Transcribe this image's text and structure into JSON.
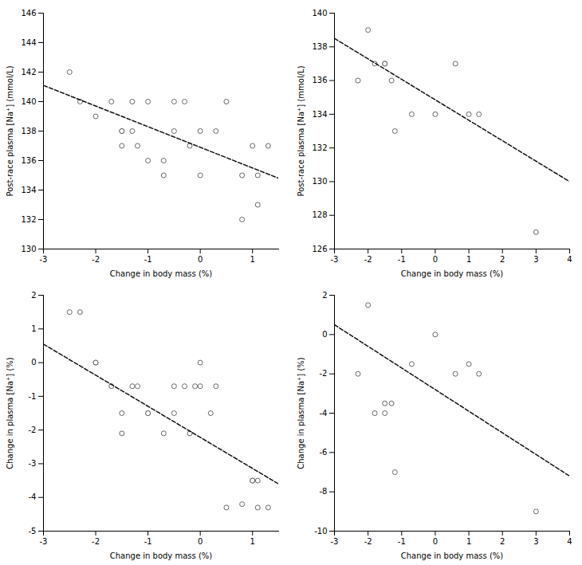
{
  "chart_data": [
    {
      "type": "scatter",
      "xlabel": "Change in body mass (%)",
      "ylabel": "Post-race plasma [Na⁺] (mmol/L)",
      "xlim": [
        -3,
        1.5
      ],
      "ylim": [
        130,
        146
      ],
      "xticks": [
        -3,
        -2,
        -1,
        0,
        1
      ],
      "yticks": [
        130,
        132,
        134,
        136,
        138,
        140,
        142,
        144,
        146
      ],
      "grid": false,
      "series": [
        {
          "type": "scatter",
          "marker": "open circle",
          "color": "#444444",
          "x": [
            -2.5,
            -2.3,
            -2.0,
            -1.7,
            -1.5,
            -1.5,
            -1.5,
            -1.3,
            -1.3,
            -1.2,
            -1.0,
            -1.0,
            -0.7,
            -0.7,
            -0.5,
            -0.5,
            -0.3,
            -0.2,
            0.0,
            0.0,
            0.3,
            0.5,
            0.8,
            0.8,
            1.0,
            1.1,
            1.1,
            1.3
          ],
          "values": [
            142,
            140,
            139,
            140,
            138,
            138,
            137,
            138,
            140,
            137,
            136,
            140,
            136,
            135,
            140,
            138,
            140,
            137,
            138,
            135,
            138,
            140,
            135,
            132,
            137,
            135,
            133,
            137
          ]
        },
        {
          "type": "line",
          "line_style": "dashed",
          "color": "#111111",
          "x": [
            -3,
            1.5
          ],
          "values": [
            141.1,
            134.8
          ]
        }
      ]
    },
    {
      "type": "scatter",
      "xlabel": "Change in body mass (%)",
      "ylabel": "Post-race plasma [Na⁺] (mmol/L)",
      "xlim": [
        -3,
        4
      ],
      "ylim": [
        126,
        140
      ],
      "xticks": [
        -3,
        -2,
        -1,
        0,
        1,
        2,
        3,
        4
      ],
      "yticks": [
        126,
        128,
        130,
        132,
        134,
        136,
        138,
        140
      ],
      "grid": false,
      "series": [
        {
          "type": "scatter",
          "marker": "open circle",
          "color": "#444444",
          "x": [
            -2.3,
            -2.0,
            -1.8,
            -1.5,
            -1.5,
            -1.3,
            -1.2,
            -0.7,
            0.0,
            0.6,
            1.0,
            1.3,
            3.0
          ],
          "values": [
            136,
            139,
            137,
            137,
            137,
            136,
            133,
            134,
            134,
            137,
            134,
            134,
            127
          ]
        },
        {
          "type": "line",
          "line_style": "dashed",
          "color": "#111111",
          "x": [
            -3,
            4
          ],
          "values": [
            138.5,
            130.0
          ]
        }
      ]
    },
    {
      "type": "scatter",
      "xlabel": "Change in body mass (%)",
      "ylabel": "Change in plasma [Na⁺] (%)",
      "xlim": [
        -3,
        1.5
      ],
      "ylim": [
        -5,
        2
      ],
      "xticks": [
        -3,
        -2,
        -1,
        0,
        1
      ],
      "yticks": [
        -5,
        -4,
        -3,
        -2,
        -1,
        0,
        1,
        2
      ],
      "grid": false,
      "series": [
        {
          "type": "scatter",
          "marker": "open circle",
          "color": "#444444",
          "x": [
            -2.5,
            -2.3,
            -2.0,
            -2.0,
            -1.7,
            -1.5,
            -1.5,
            -1.3,
            -1.2,
            -1.0,
            -1.0,
            -0.7,
            -0.5,
            -0.5,
            -0.3,
            -0.2,
            -0.1,
            0.0,
            0.0,
            0.2,
            0.3,
            0.5,
            0.8,
            1.0,
            1.0,
            1.1,
            1.1,
            1.3
          ],
          "values": [
            1.5,
            1.5,
            0.0,
            0.0,
            -0.7,
            -2.1,
            -1.5,
            -0.7,
            -0.7,
            -1.5,
            -1.5,
            -2.1,
            -1.5,
            -0.7,
            -0.7,
            -2.1,
            -0.7,
            0.0,
            -0.7,
            -1.5,
            -0.7,
            -4.3,
            -4.2,
            -3.5,
            -3.5,
            -3.5,
            -4.3,
            -4.3
          ]
        },
        {
          "type": "line",
          "line_style": "dashed",
          "color": "#111111",
          "x": [
            -3,
            1.5
          ],
          "values": [
            0.55,
            -3.6
          ]
        }
      ]
    },
    {
      "type": "scatter",
      "xlabel": "Change in body mass (%)",
      "ylabel": "Change in plasma [Na⁺] (%)",
      "xlim": [
        -3,
        4
      ],
      "ylim": [
        -10,
        2
      ],
      "xticks": [
        -3,
        -2,
        -1,
        0,
        1,
        2,
        3,
        4
      ],
      "yticks": [
        -10,
        -8,
        -6,
        -4,
        -2,
        0,
        2
      ],
      "grid": false,
      "series": [
        {
          "type": "scatter",
          "marker": "open circle",
          "color": "#444444",
          "x": [
            -2.3,
            -2.0,
            -1.8,
            -1.5,
            -1.5,
            -1.3,
            -1.2,
            -0.7,
            0.0,
            0.6,
            1.0,
            1.3,
            3.0
          ],
          "values": [
            -2.0,
            1.5,
            -4.0,
            -4.0,
            -3.5,
            -3.5,
            -7.0,
            -1.5,
            0.0,
            -2.0,
            -1.5,
            -2.0,
            -9.0
          ]
        },
        {
          "type": "line",
          "line_style": "dashed",
          "color": "#111111",
          "x": [
            -3,
            4
          ],
          "values": [
            0.5,
            -7.2
          ]
        }
      ]
    }
  ]
}
